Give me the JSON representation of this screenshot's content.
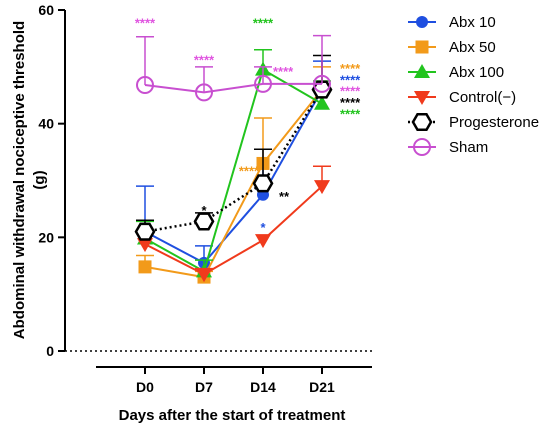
{
  "chart_data": {
    "type": "line",
    "categories": [
      "D0",
      "D7",
      "D14",
      "D21"
    ],
    "xlabel": "Days after the start of treatment",
    "ylabel": "Abdominal withdrawal nociceptive threshold (g)",
    "ylim": [
      0,
      60
    ],
    "yticks": [
      0,
      20,
      40,
      60
    ],
    "grid": false,
    "legend_position": "right",
    "series": [
      {
        "name": "Abx 10",
        "color": "#1f4fe0",
        "marker": "circle-filled",
        "values": [
          21,
          15.5,
          27.5,
          46
        ],
        "errors": [
          8,
          3,
          8,
          5
        ]
      },
      {
        "name": "Abx 50",
        "color": "#f29a1a",
        "marker": "square-filled",
        "values": [
          14.8,
          13,
          33,
          46
        ],
        "errors": [
          2,
          1,
          8,
          4
        ]
      },
      {
        "name": "Abx 100",
        "color": "#22c41e",
        "marker": "triangle-up-filled",
        "values": [
          19.8,
          14,
          49.5,
          43.5
        ],
        "errors": [
          3,
          2,
          3.5,
          4
        ]
      },
      {
        "name": "Control(−)",
        "color": "#f03a1c",
        "marker": "triangle-down-filled",
        "values": [
          18.8,
          13.5,
          19.5,
          29
        ],
        "errors": [
          2,
          1,
          0,
          3.5
        ]
      },
      {
        "name": "Progesterone",
        "color": "#000000",
        "marker": "hexagon-open",
        "values": [
          21,
          22.8,
          29.5,
          46
        ],
        "errors": [
          2,
          1.5,
          6,
          6
        ],
        "dotted": true
      },
      {
        "name": "Sham",
        "color": "#c84fd0",
        "marker": "circle-open",
        "values": [
          46.8,
          45.5,
          47,
          47
        ],
        "errors": [
          8.5,
          4.5,
          3,
          8.5
        ]
      }
    ],
    "annotations": [
      {
        "x": "D0",
        "y": 58.5,
        "text": "****",
        "color": "#e055e0"
      },
      {
        "x": "D7",
        "y": 52,
        "text": "****",
        "color": "#e055e0"
      },
      {
        "x": "D7",
        "y": 25.5,
        "text": "*",
        "color": "#000000"
      },
      {
        "x": "D14",
        "y": 58.5,
        "text": "****",
        "color": "#22c41e"
      },
      {
        "x": "D14",
        "y": 50,
        "text": "****",
        "color": "#e055e0"
      },
      {
        "x": "D14",
        "y": 32.5,
        "text": "****",
        "color": "#f29a1a"
      },
      {
        "x": "D14",
        "y": 28,
        "text": "**",
        "color": "#000000"
      },
      {
        "x": "D14",
        "y": 22.5,
        "text": "*",
        "color": "#1f4fe0"
      },
      {
        "x": "D21",
        "y": 50.5,
        "text": "****",
        "color": "#f29a1a"
      },
      {
        "x": "D21",
        "y": 48.5,
        "text": "****",
        "color": "#1f4fe0"
      },
      {
        "x": "D21",
        "y": 46.5,
        "text": "****",
        "color": "#e055e0"
      },
      {
        "x": "D21",
        "y": 44.5,
        "text": "****",
        "color": "#000000"
      },
      {
        "x": "D21",
        "y": 42.5,
        "text": "****",
        "color": "#22c41e"
      }
    ]
  }
}
